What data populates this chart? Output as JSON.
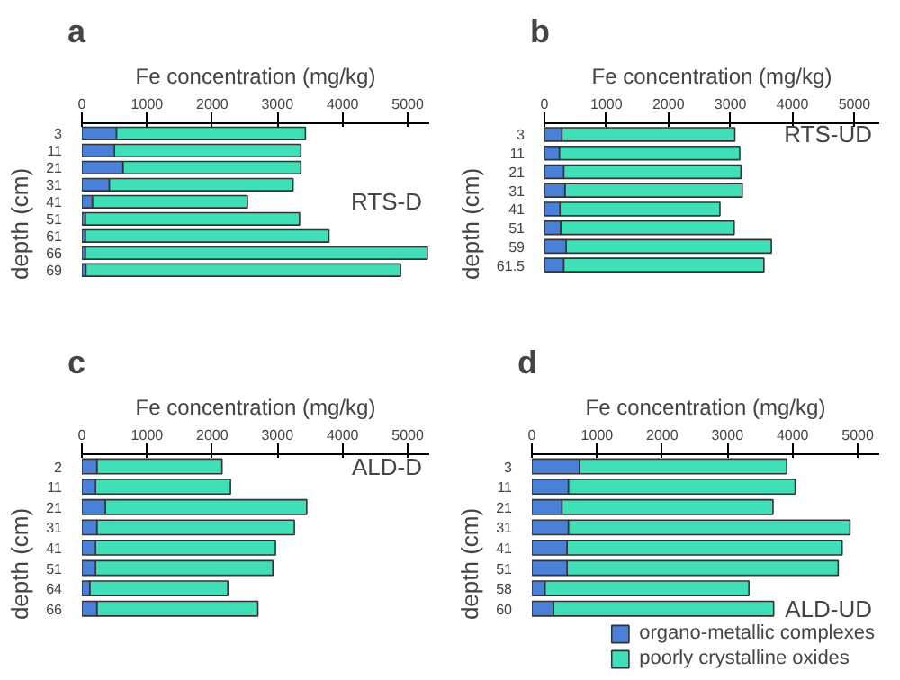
{
  "chart_data": [
    {
      "type": "bar",
      "orientation": "horizontal",
      "stacked": true,
      "title": "a",
      "xlabel": "Fe concentration (mg/kg)",
      "ylabel": "depth (cm)",
      "annotations": [
        "RTS-D"
      ],
      "categories": [
        "3",
        "11",
        "21",
        "31",
        "41",
        "51",
        "61",
        "66",
        "69"
      ],
      "series": [
        {
          "color": "#4a80d8",
          "values": [
            530,
            500,
            630,
            420,
            160,
            50,
            50,
            50,
            60
          ]
        },
        {
          "color": "#3fe0b8",
          "values": [
            2900,
            2860,
            2730,
            2820,
            2380,
            3290,
            3740,
            5250,
            4830
          ]
        }
      ],
      "xlim": [
        0,
        5330
      ],
      "xticks": [
        0,
        1000,
        2000,
        3000,
        4000,
        5000
      ],
      "grid": false
    },
    {
      "type": "bar",
      "orientation": "horizontal",
      "stacked": true,
      "title": "b",
      "xlabel": "Fe concentration (mg/kg)",
      "ylabel": "depth (cm)",
      "annotations": [
        "RTS-UD"
      ],
      "categories": [
        "3",
        "11",
        "21",
        "31",
        "41",
        "51",
        "59",
        "61.5"
      ],
      "series": [
        {
          "color": "#4a80d8",
          "values": [
            280,
            240,
            310,
            330,
            250,
            260,
            350,
            310
          ]
        },
        {
          "color": "#3fe0b8",
          "values": [
            2790,
            2910,
            2860,
            2860,
            2580,
            2800,
            3310,
            3230
          ]
        }
      ],
      "xlim": [
        0,
        5400
      ],
      "xticks": [
        0,
        1000,
        2000,
        3000,
        4000,
        5000
      ],
      "grid": false
    },
    {
      "type": "bar",
      "orientation": "horizontal",
      "stacked": true,
      "title": "c",
      "xlabel": "Fe concentration (mg/kg)",
      "ylabel": "depth (cm)",
      "annotations": [
        "ALD-D"
      ],
      "categories": [
        "2",
        "11",
        "21",
        "31",
        "41",
        "51",
        "64",
        "66"
      ],
      "series": [
        {
          "color": "#4a80d8",
          "values": [
            230,
            210,
            360,
            230,
            210,
            210,
            120,
            230
          ]
        },
        {
          "color": "#3fe0b8",
          "values": [
            1920,
            2070,
            3090,
            3030,
            2760,
            2720,
            2120,
            2470
          ]
        }
      ],
      "xlim": [
        0,
        5330
      ],
      "xticks": [
        0,
        1000,
        2000,
        3000,
        4000,
        5000
      ],
      "grid": false
    },
    {
      "type": "bar",
      "orientation": "horizontal",
      "stacked": true,
      "title": "d",
      "xlabel": "Fe concentration (mg/kg)",
      "ylabel": "depth (cm)",
      "annotations": [
        "ALD-UD"
      ],
      "categories": [
        "3",
        "11",
        "21",
        "31",
        "41",
        "51",
        "58",
        "60"
      ],
      "series": [
        {
          "name": "organo-metallic complexes",
          "color": "#4a80d8",
          "values": [
            730,
            560,
            460,
            560,
            540,
            540,
            200,
            330
          ]
        },
        {
          "name": "poorly crystalline oxides",
          "color": "#3fe0b8",
          "values": [
            3180,
            3480,
            3240,
            4320,
            4220,
            4160,
            3130,
            3380
          ]
        }
      ],
      "xlim": [
        0,
        5330
      ],
      "xticks": [
        0,
        1000,
        2000,
        3000,
        4000,
        5000
      ],
      "grid": false,
      "legend": "bottom right"
    }
  ]
}
